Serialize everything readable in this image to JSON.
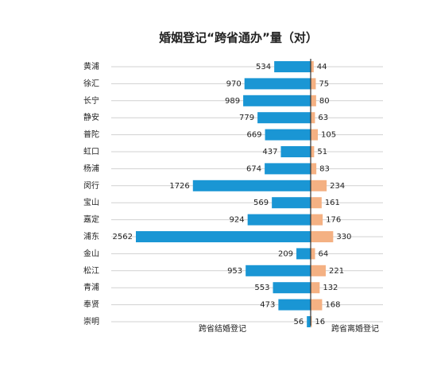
{
  "chart_data": {
    "type": "bar",
    "orientation": "butterfly",
    "title": "婚姻登记“跨省通办”量（对）",
    "categories": [
      "黄浦",
      "徐汇",
      "长宁",
      "静安",
      "普陀",
      "虹口",
      "杨浦",
      "闵行",
      "宝山",
      "嘉定",
      "浦东",
      "金山",
      "松江",
      "青浦",
      "奉贤",
      "崇明"
    ],
    "series": [
      {
        "name": "跨省结婚登记",
        "color": "#1a96d4",
        "values": [
          534,
          970,
          989,
          779,
          669,
          437,
          674,
          1726,
          569,
          924,
          2562,
          209,
          953,
          553,
          473,
          56
        ]
      },
      {
        "name": "跨省离婚登记",
        "color": "#f4b183",
        "values": [
          44,
          75,
          80,
          63,
          105,
          51,
          83,
          234,
          161,
          176,
          330,
          64,
          221,
          132,
          168,
          16
        ]
      }
    ],
    "grid": true
  }
}
